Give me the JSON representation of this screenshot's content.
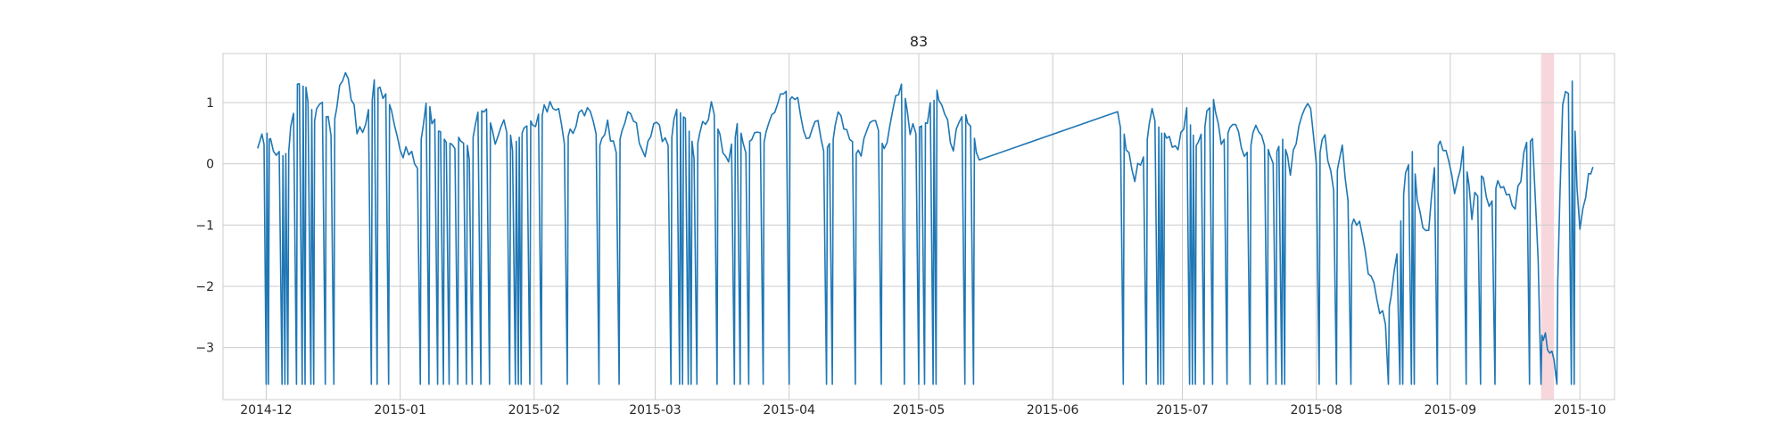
{
  "chart_data": {
    "type": "line",
    "title": "83",
    "xlabel": "",
    "ylabel": "",
    "x_range": [
      "2014-11-21",
      "2015-10-09"
    ],
    "ylim": [
      -3.85,
      1.8
    ],
    "x_ticks": [
      "2014-12",
      "2015-01",
      "2015-02",
      "2015-03",
      "2015-04",
      "2015-05",
      "2015-06",
      "2015-07",
      "2015-08",
      "2015-09",
      "2015-10"
    ],
    "y_ticks": [
      1,
      0,
      -1,
      -2,
      -3
    ],
    "y_tick_labels": [
      "1",
      "0",
      "−1",
      "−2",
      "−3"
    ],
    "grid": true,
    "series_color": "#1f77b4",
    "highlight": {
      "start": "2015-09-22",
      "end": "2015-09-25",
      "color": "#f8d7dc"
    },
    "series": [
      {
        "floor": -3.6,
        "points": [
          [
            "2014-11-29",
            0.25
          ],
          [
            "2014-11-30",
            0.4
          ],
          [
            "2014-12-01",
            0.5
          ],
          [
            "2014-12-02",
            0.3
          ],
          [
            "2014-12-04",
            0.1
          ],
          [
            "2014-12-06",
            0.2
          ],
          [
            "2014-12-08",
            1.3
          ],
          [
            "2014-12-10",
            1.25
          ],
          [
            "2014-12-12",
            0.7
          ],
          [
            "2014-12-14",
            0.9
          ],
          [
            "2014-12-16",
            0.5
          ],
          [
            "2014-12-18",
            1.2
          ],
          [
            "2014-12-20",
            1.45
          ],
          [
            "2014-12-22",
            0.6
          ],
          [
            "2014-12-24",
            0.6
          ],
          [
            "2014-12-26",
            1.25
          ],
          [
            "2014-12-28",
            1.2
          ],
          [
            "2014-12-30",
            0.85
          ],
          [
            "2015-01-01",
            0.2
          ],
          [
            "2015-01-03",
            0.25
          ],
          [
            "2015-01-05",
            0.05
          ],
          [
            "2015-01-07",
            1.1
          ],
          [
            "2015-01-09",
            0.6
          ],
          [
            "2015-01-11",
            0.4
          ],
          [
            "2015-01-13",
            0.3
          ],
          [
            "2015-01-15",
            0.5
          ],
          [
            "2015-01-17",
            0.2
          ],
          [
            "2015-01-19",
            0.9
          ],
          [
            "2015-01-21",
            0.8
          ],
          [
            "2015-01-23",
            0.4
          ],
          [
            "2015-01-25",
            0.8
          ],
          [
            "2015-01-27",
            0.3
          ],
          [
            "2015-01-29",
            0.5
          ],
          [
            "2015-01-31",
            0.7
          ],
          [
            "2015-02-02",
            0.7
          ],
          [
            "2015-02-04",
            0.95
          ],
          [
            "2015-02-06",
            0.95
          ],
          [
            "2015-02-08",
            0.4
          ],
          [
            "2015-02-10",
            0.55
          ],
          [
            "2015-02-12",
            0.9
          ],
          [
            "2015-02-14",
            0.9
          ],
          [
            "2015-02-16",
            0.3
          ],
          [
            "2015-02-18",
            0.6
          ],
          [
            "2015-02-20",
            0.2
          ],
          [
            "2015-02-22",
            0.8
          ],
          [
            "2015-02-24",
            0.8
          ],
          [
            "2015-02-26",
            0.1
          ],
          [
            "2015-02-28",
            0.5
          ],
          [
            "2015-03-02",
            0.6
          ],
          [
            "2015-03-04",
            0.2
          ],
          [
            "2015-03-06",
            0.9
          ],
          [
            "2015-03-08",
            0.7
          ],
          [
            "2015-03-10",
            0.2
          ],
          [
            "2015-03-12",
            0.6
          ],
          [
            "2015-03-14",
            0.9
          ],
          [
            "2015-03-16",
            0.4
          ],
          [
            "2015-03-18",
            0.1
          ],
          [
            "2015-03-20",
            0.6
          ],
          [
            "2015-03-22",
            0.3
          ],
          [
            "2015-03-24",
            0.5
          ],
          [
            "2015-03-26",
            0.35
          ],
          [
            "2015-03-28",
            0.9
          ],
          [
            "2015-03-30",
            1.05
          ],
          [
            "2015-04-01",
            1.05
          ],
          [
            "2015-04-03",
            1.0
          ],
          [
            "2015-04-05",
            0.3
          ],
          [
            "2015-04-07",
            0.8
          ],
          [
            "2015-04-09",
            0.2
          ],
          [
            "2015-04-11",
            0.4
          ],
          [
            "2015-04-13",
            0.9
          ],
          [
            "2015-04-15",
            0.3
          ],
          [
            "2015-04-17",
            0.1
          ],
          [
            "2015-04-19",
            0.5
          ],
          [
            "2015-04-21",
            0.6
          ],
          [
            "2015-04-23",
            0.2
          ],
          [
            "2015-04-25",
            1.0
          ],
          [
            "2015-04-27",
            1.35
          ],
          [
            "2015-04-29",
            0.5
          ],
          [
            "2015-05-01",
            0.6
          ],
          [
            "2015-05-03",
            0.7
          ],
          [
            "2015-05-05",
            1.2
          ],
          [
            "2015-05-07",
            0.9
          ],
          [
            "2015-05-09",
            0.2
          ],
          [
            "2015-05-11",
            0.9
          ],
          [
            "2015-05-13",
            0.6
          ],
          [
            "2015-05-15",
            0.05
          ],
          [
            "2015-06-16",
            0.85
          ],
          [
            "2015-06-18",
            0.3
          ],
          [
            "2015-06-20",
            -0.3
          ],
          [
            "2015-06-22",
            0.2
          ],
          [
            "2015-06-24",
            0.8
          ],
          [
            "2015-06-26",
            0.5
          ],
          [
            "2015-06-28",
            0.5
          ],
          [
            "2015-06-30",
            0.2
          ],
          [
            "2015-07-02",
            0.8
          ],
          [
            "2015-07-04",
            0.3
          ],
          [
            "2015-07-06",
            0.6
          ],
          [
            "2015-07-08",
            1.05
          ],
          [
            "2015-07-10",
            0.3
          ],
          [
            "2015-07-12",
            0.6
          ],
          [
            "2015-07-14",
            0.5
          ],
          [
            "2015-07-16",
            0.1
          ],
          [
            "2015-07-18",
            0.7
          ],
          [
            "2015-07-20",
            0.3
          ],
          [
            "2015-07-22",
            0.1
          ],
          [
            "2015-07-24",
            0.4
          ],
          [
            "2015-07-26",
            -0.1
          ],
          [
            "2015-07-28",
            0.7
          ],
          [
            "2015-07-30",
            1.1
          ],
          [
            "2015-08-01",
            0.1
          ],
          [
            "2015-08-03",
            0.35
          ],
          [
            "2015-08-05",
            -0.3
          ],
          [
            "2015-08-07",
            0.3
          ],
          [
            "2015-08-09",
            -1.0
          ],
          [
            "2015-08-11",
            -0.85
          ],
          [
            "2015-08-13",
            -1.8
          ],
          [
            "2015-08-15",
            -2.2
          ],
          [
            "2015-08-17",
            -2.6
          ],
          [
            "2015-08-19",
            -1.8
          ],
          [
            "2015-08-21",
            -0.5
          ],
          [
            "2015-08-23",
            0.2
          ],
          [
            "2015-08-25",
            -0.9
          ],
          [
            "2015-08-27",
            -1.1
          ],
          [
            "2015-08-29",
            0.3
          ],
          [
            "2015-08-31",
            0.1
          ],
          [
            "2015-09-02",
            -0.5
          ],
          [
            "2015-09-04",
            0.2
          ],
          [
            "2015-09-06",
            -0.8
          ],
          [
            "2015-09-08",
            -0.2
          ],
          [
            "2015-09-10",
            -0.6
          ],
          [
            "2015-09-12",
            -0.3
          ],
          [
            "2015-09-14",
            -0.5
          ],
          [
            "2015-09-16",
            -0.8
          ],
          [
            "2015-09-18",
            0.1
          ],
          [
            "2015-09-20",
            0.5
          ],
          [
            "2015-09-22",
            -2.8
          ],
          [
            "2015-09-23",
            -2.9
          ],
          [
            "2015-09-24",
            -3.0
          ],
          [
            "2015-09-25",
            -3.3
          ],
          [
            "2015-09-27",
            0.9
          ],
          [
            "2015-09-29",
            1.35
          ],
          [
            "2015-10-01",
            -1.1
          ],
          [
            "2015-10-03",
            -0.1
          ],
          [
            "2015-10-04",
            -0.1
          ]
        ],
        "gaps": [
          [
            "2015-05-15",
            "2015-06-16"
          ]
        ]
      }
    ]
  }
}
